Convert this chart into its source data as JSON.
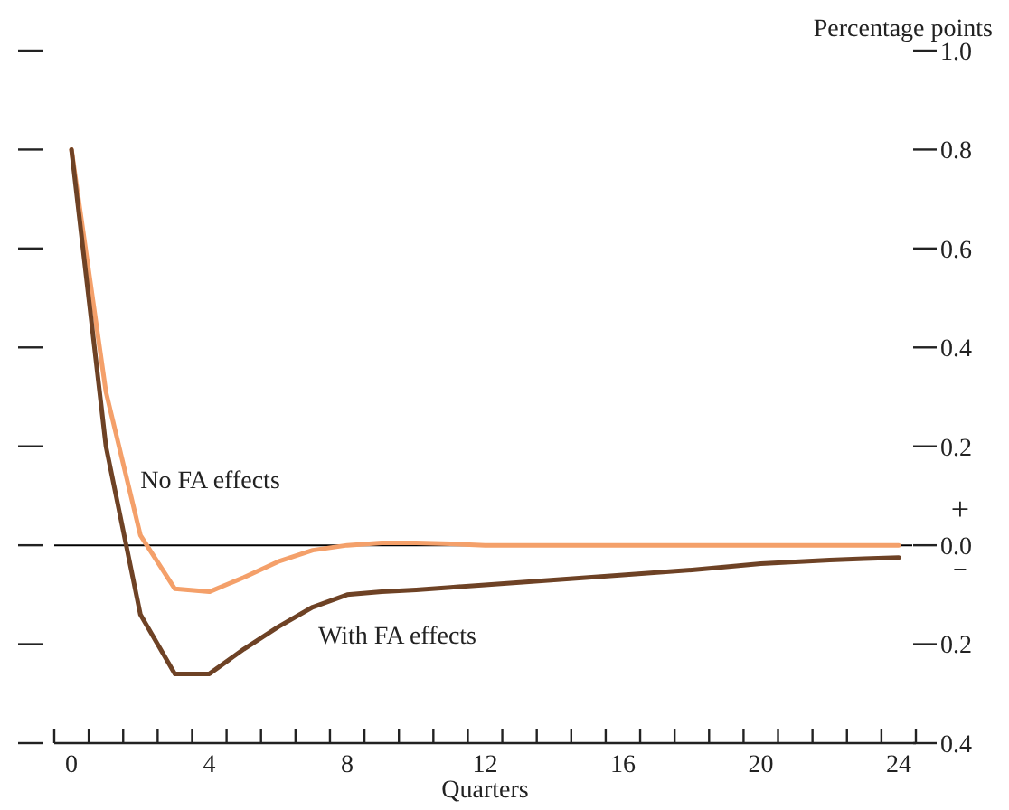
{
  "chart_data": {
    "type": "line",
    "ylabel": "Percentage points",
    "xlabel": "Quarters",
    "x": [
      0,
      1,
      2,
      3,
      4,
      5,
      6,
      7,
      8,
      9,
      10,
      11,
      12,
      14,
      16,
      18,
      20,
      22,
      23,
      24
    ],
    "series": [
      {
        "name": "No FA effects",
        "color": "#f4a06a",
        "values": [
          0.8,
          0.31,
          0.02,
          -0.088,
          -0.094,
          -0.065,
          -0.033,
          -0.01,
          0.0,
          0.005,
          0.005,
          0.003,
          0.0,
          0.0,
          0.0,
          0.0,
          0.0,
          0.0,
          0.0,
          0.0
        ]
      },
      {
        "name": "With FA effects",
        "color": "#6e4225",
        "values": [
          0.8,
          0.2,
          -0.14,
          -0.26,
          -0.26,
          -0.21,
          -0.165,
          -0.125,
          -0.1,
          -0.094,
          -0.09,
          -0.085,
          -0.08,
          -0.07,
          -0.06,
          -0.05,
          -0.037,
          -0.03,
          -0.027,
          -0.025
        ]
      }
    ],
    "xlim": [
      -0.5,
      24.5
    ],
    "xticks": [
      0,
      4,
      8,
      12,
      16,
      20,
      24,
      {
        "value": -0.5,
        "label": null
      },
      {
        "value": 0.5,
        "label": null
      },
      {
        "value": 1.5,
        "label": null
      },
      {
        "value": 2.5,
        "label": null
      },
      {
        "value": 3.5,
        "label": null
      },
      {
        "value": 4.5,
        "label": null
      },
      {
        "value": 5.5,
        "label": null
      },
      {
        "value": 6.5,
        "label": null
      },
      {
        "value": 7.5,
        "label": null
      },
      {
        "value": 8.5,
        "label": null
      },
      {
        "value": 9.5,
        "label": null
      },
      {
        "value": 10.5,
        "label": null
      },
      {
        "value": 11.5,
        "label": null
      },
      {
        "value": 12.5,
        "label": null
      },
      {
        "value": 13.5,
        "label": null
      },
      {
        "value": 14.5,
        "label": null
      },
      {
        "value": 15.5,
        "label": null
      },
      {
        "value": 16.5,
        "label": null
      },
      {
        "value": 17.5,
        "label": null
      },
      {
        "value": 18.5,
        "label": null
      },
      {
        "value": 19.5,
        "label": null
      },
      {
        "value": 20.5,
        "label": null
      },
      {
        "value": 21.5,
        "label": null
      },
      {
        "value": 22.5,
        "label": null
      },
      {
        "value": 23.5,
        "label": null
      },
      {
        "value": 24.5,
        "label": null
      }
    ],
    "ylim": [
      -0.4,
      1.0
    ],
    "yticks": [
      {
        "value": -0.4,
        "label": "0.4"
      },
      {
        "value": -0.2,
        "label": "0.2"
      },
      {
        "value": 0,
        "label": "0.0"
      },
      0.2,
      0.4,
      0.6,
      0.8,
      {
        "value": 1.0,
        "label": "1.0"
      }
    ],
    "ref_lines": [
      {
        "axis": "y",
        "value": 0,
        "color": "#000000"
      }
    ],
    "annotations": [
      "+",
      "−"
    ],
    "grid": false,
    "legend": false,
    "marker": "none",
    "line_style": "solid"
  }
}
